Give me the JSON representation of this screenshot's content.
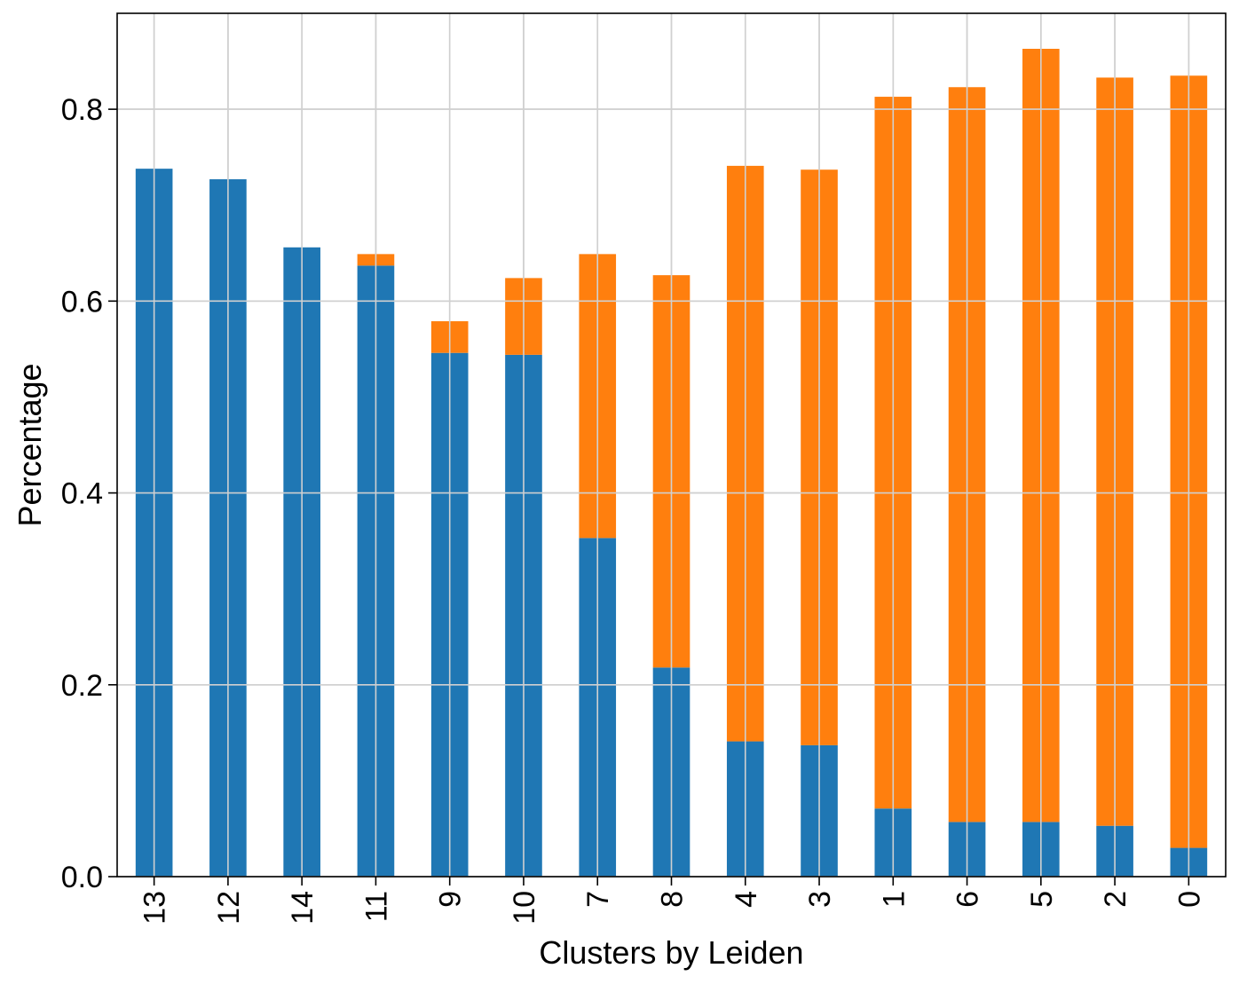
{
  "chart_data": {
    "type": "bar",
    "stacked": true,
    "title": "",
    "xlabel": "Clusters by Leiden",
    "ylabel": "Percentage",
    "ylim": [
      0,
      0.9
    ],
    "yticks": [
      0.0,
      0.2,
      0.4,
      0.6,
      0.8
    ],
    "ytick_labels": [
      "0.0",
      "0.2",
      "0.4",
      "0.6",
      "0.8"
    ],
    "grid": true,
    "legend": "none",
    "categories": [
      "13",
      "12",
      "14",
      "11",
      "9",
      "10",
      "7",
      "8",
      "4",
      "3",
      "1",
      "6",
      "5",
      "2",
      "0"
    ],
    "series": [
      {
        "color": "#1f77b4",
        "values": [
          0.738,
          0.727,
          0.656,
          0.637,
          0.546,
          0.544,
          0.353,
          0.218,
          0.141,
          0.137,
          0.071,
          0.057,
          0.057,
          0.053,
          0.03
        ]
      },
      {
        "color": "#ff7f0e",
        "values": [
          0.0,
          0.0,
          0.0,
          0.012,
          0.033,
          0.08,
          0.296,
          0.409,
          0.6,
          0.6,
          0.742,
          0.766,
          0.806,
          0.78,
          0.805
        ]
      }
    ]
  }
}
